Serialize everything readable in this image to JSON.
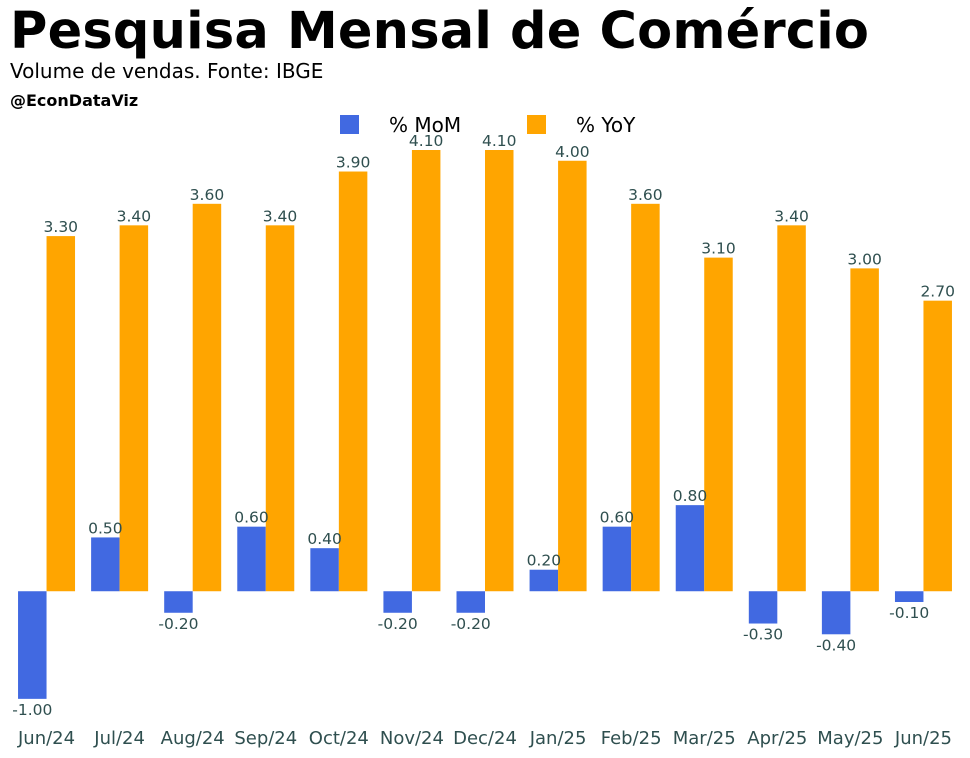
{
  "header": {
    "title": "Pesquisa Mensal de Comércio",
    "subtitle": "Volume de vendas. Fonte: IBGE",
    "handle": "@EconDataViz"
  },
  "chart_data": {
    "type": "bar",
    "title": "Pesquisa Mensal de Comércio",
    "subtitle": "Volume de vendas. Fonte: IBGE",
    "xlabel": "",
    "ylabel": "",
    "grid": false,
    "legend_position": "top-center",
    "categories": [
      "Jun/24",
      "Jul/24",
      "Aug/24",
      "Sep/24",
      "Oct/24",
      "Nov/24",
      "Dec/24",
      "Jan/25",
      "Feb/25",
      "Mar/25",
      "Apr/25",
      "May/25",
      "Jun/25"
    ],
    "ylim": [
      -1.15,
      4.1
    ],
    "series": [
      {
        "name": "% MoM",
        "color": "#4169e1",
        "values": [
          -1.0,
          0.5,
          -0.2,
          0.6,
          0.4,
          -0.2,
          -0.2,
          0.2,
          0.6,
          0.8,
          -0.3,
          -0.4,
          -0.1
        ],
        "labels": [
          "-1.00",
          "0.50",
          "-0.20",
          "0.60",
          "0.40",
          "-0.20",
          "-0.20",
          "0.20",
          "0.60",
          "0.80",
          "-0.30",
          "-0.40",
          "-0.10"
        ]
      },
      {
        "name": "% YoY",
        "color": "#ffa500",
        "values": [
          3.3,
          3.4,
          3.6,
          3.4,
          3.9,
          4.1,
          4.1,
          4.0,
          3.6,
          3.1,
          3.4,
          3.0,
          2.7
        ],
        "labels": [
          "3.30",
          "3.40",
          "3.60",
          "3.40",
          "3.90",
          "4.10",
          "4.10",
          "4.00",
          "3.60",
          "3.10",
          "3.40",
          "3.00",
          "2.70"
        ]
      }
    ]
  }
}
